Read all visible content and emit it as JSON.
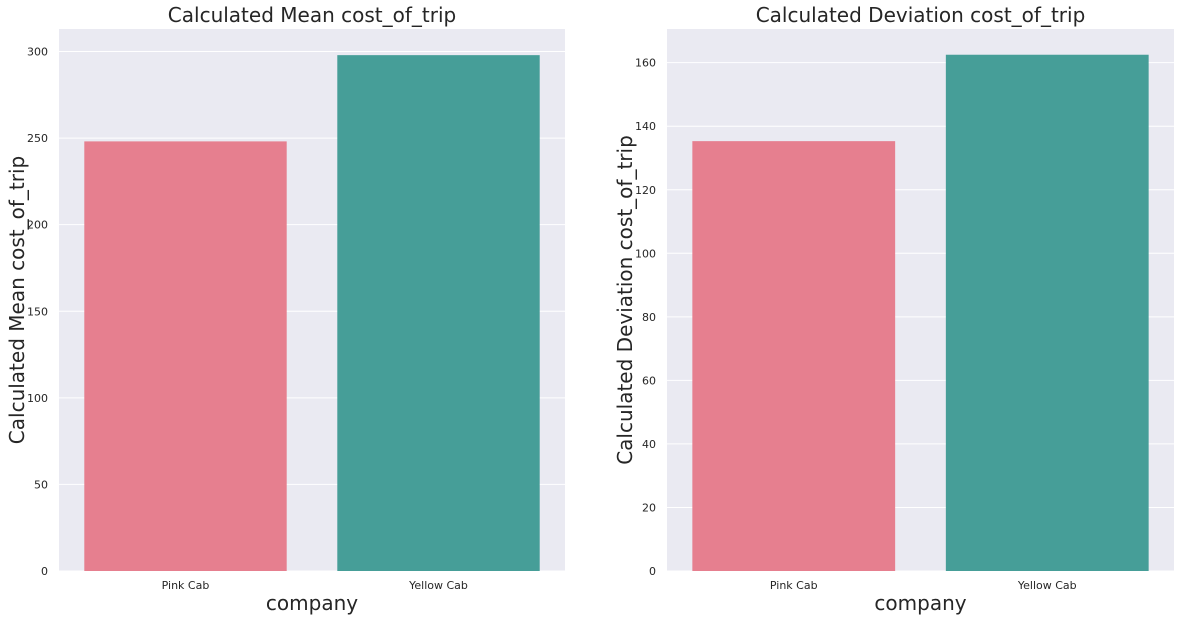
{
  "chart_data": [
    {
      "type": "bar",
      "title": "Calculated Mean cost_of_trip",
      "xlabel": "company",
      "ylabel": "Calculated Mean cost_of_trip",
      "categories": [
        "Pink Cab",
        "Yellow Cab"
      ],
      "values": [
        248.1,
        297.9
      ],
      "ylim": [
        0,
        313
      ],
      "yticks": [
        0,
        50,
        100,
        150,
        200,
        250,
        300
      ],
      "grid": true,
      "colors": [
        "#e67f8f",
        "#469e98"
      ],
      "background": "#eaeaf2"
    },
    {
      "type": "bar",
      "title": "Calculated Deviation cost_of_trip",
      "xlabel": "company",
      "ylabel": "Calculated Deviation cost_of_trip",
      "categories": [
        "Pink Cab",
        "Yellow Cab"
      ],
      "values": [
        135.3,
        162.5
      ],
      "ylim": [
        0,
        170.6
      ],
      "yticks": [
        0,
        20,
        40,
        60,
        80,
        100,
        120,
        140,
        160
      ],
      "grid": true,
      "colors": [
        "#e67f8f",
        "#469e98"
      ],
      "background": "#eaeaf2"
    }
  ]
}
